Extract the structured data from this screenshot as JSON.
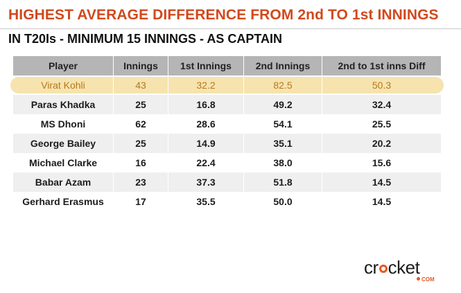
{
  "title": "HIGHEST AVERAGE DIFFERENCE FROM 2nd TO 1st INNINGS",
  "subtitle": "IN T20Is - MINIMUM 15 INNINGS - AS CAPTAIN",
  "colors": {
    "title": "#d1491d",
    "header_bg": "#b5b5b5",
    "row_shade": "#efefef",
    "highlight_bg": "#f6e3ae",
    "highlight_text": "#b5791f",
    "logo_accent": "#e05a26"
  },
  "logo": {
    "text_before": "cr",
    "text_after": "cket",
    "sub": "COM"
  },
  "chart_data": {
    "type": "table",
    "columns": [
      "Player",
      "Innings",
      "1st Innings",
      "2nd Innings",
      "2nd to 1st inns Diff"
    ],
    "rows": [
      [
        "Virat Kohli",
        "43",
        "32.2",
        "82.5",
        "50.3"
      ],
      [
        "Paras Khadka",
        "25",
        "16.8",
        "49.2",
        "32.4"
      ],
      [
        "MS Dhoni",
        "62",
        "28.6",
        "54.1",
        "25.5"
      ],
      [
        "George Bailey",
        "25",
        "14.9",
        "35.1",
        "20.2"
      ],
      [
        "Michael Clarke",
        "16",
        "22.4",
        "38.0",
        "15.6"
      ],
      [
        "Babar Azam",
        "23",
        "37.3",
        "51.8",
        "14.5"
      ],
      [
        "Gerhard Erasmus",
        "17",
        "35.5",
        "50.0",
        "14.5"
      ]
    ],
    "highlighted_row": "Virat Kohli"
  }
}
